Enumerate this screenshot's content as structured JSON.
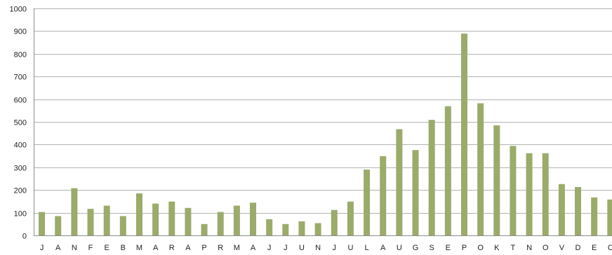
{
  "chart_data": {
    "type": "bar",
    "title": "",
    "xlabel": "",
    "ylabel": "",
    "ylim": [
      0,
      1000
    ],
    "yticks": [
      0,
      100,
      200,
      300,
      400,
      500,
      600,
      700,
      800,
      900,
      1000
    ],
    "grid": true,
    "legend": "none",
    "bar_color": "#9bab6a",
    "categories": [
      "J",
      "A",
      "N",
      "F",
      "E",
      "B",
      "M",
      "A",
      "R",
      "A",
      "P",
      "R",
      "M",
      "A",
      "J",
      "J",
      "U",
      "N",
      "J",
      "U",
      "L",
      "A",
      "U",
      "G",
      "S",
      "E",
      "P",
      "O",
      "K",
      "T",
      "N",
      "O",
      "V",
      "D",
      "E",
      "C"
    ],
    "values": [
      103,
      85,
      208,
      117,
      131,
      85,
      185,
      140,
      149,
      121,
      50,
      103,
      131,
      144,
      71,
      50,
      62,
      54,
      112,
      149,
      290,
      349,
      468,
      376,
      509,
      569,
      889,
      582,
      485,
      394,
      362,
      362,
      226,
      213,
      167,
      158
    ]
  }
}
